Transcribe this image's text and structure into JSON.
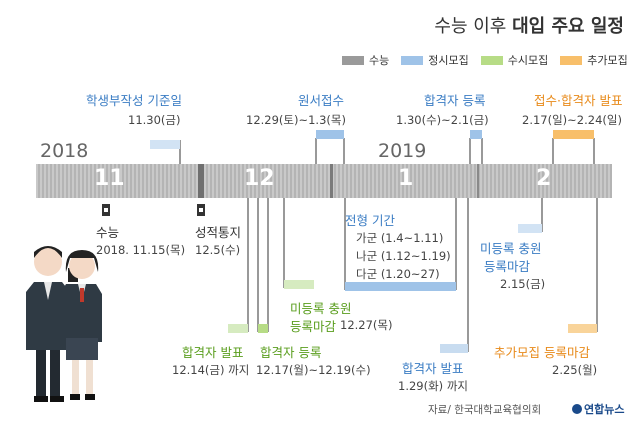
{
  "title": {
    "prefix": "수능 이후",
    "main": "대입 주요 일정"
  },
  "legend": [
    {
      "label": "수능",
      "color": "#9a9a9a"
    },
    {
      "label": "정시모집",
      "color": "#9fc3e8"
    },
    {
      "label": "수시모집",
      "color": "#b7dc86"
    },
    {
      "label": "추가모집",
      "color": "#f8bf6a"
    }
  ],
  "years": {
    "y1": "2018",
    "y2": "2019"
  },
  "months": {
    "m11": "11",
    "m12": "12",
    "m1": "1",
    "m2": "2"
  },
  "events": {
    "student_record": {
      "label": "학생부작성 기준일",
      "date": "11.30(금)"
    },
    "application": {
      "label": "원서접수",
      "date": "12.29(토)~1.3(목)"
    },
    "regular_register": {
      "label": "합격자 등록",
      "date": "1.30(수)~2.1(금)"
    },
    "extra_apply": {
      "label": "접수·합격자 발표",
      "date": "2.17(일)~2.24(일)"
    },
    "csat": {
      "label": "수능",
      "date": "2018. 11.15(목)"
    },
    "score": {
      "label": "성적통지",
      "date": "12.5(수)"
    },
    "selection": {
      "label": "전형 기간",
      "lines": [
        "가군 (1.4~1.11)",
        "나군 (1.12~1.19)",
        "다군 (1.20~27)"
      ]
    },
    "regular_unreg": {
      "label1": "미등록 충원",
      "label2": "등록마감",
      "date": "2.15(금)"
    },
    "early_unreg": {
      "label1": "미등록 충원",
      "label2": "등록마감",
      "date": "12.27(목)"
    },
    "early_result": {
      "label": "합격자 발표",
      "date": "12.14(금) 까지"
    },
    "early_register": {
      "label": "합격자 등록",
      "date": "12.17(월)~12.19(수)"
    },
    "regular_result": {
      "label": "합격자 발표",
      "date": "1.29(화) 까지"
    },
    "extra_register": {
      "label": "추가모집 등록마감",
      "date": "2.25(월)"
    }
  },
  "source": "자료/ 한국대학교육협의회",
  "logo": "연합뉴스"
}
